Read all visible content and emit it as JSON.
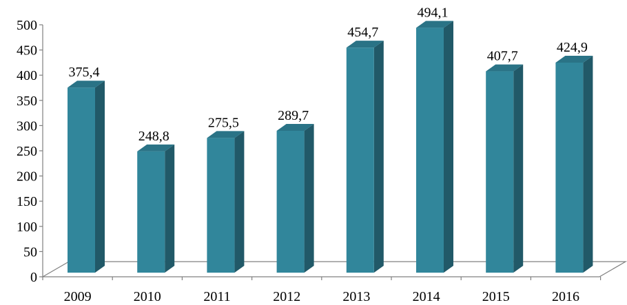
{
  "chart_data": {
    "type": "bar",
    "categories": [
      "2009",
      "2010",
      "2011",
      "2012",
      "2013",
      "2014",
      "2015",
      "2016"
    ],
    "values": [
      375.4,
      248.8,
      275.5,
      289.7,
      454.7,
      494.1,
      407.7,
      424.9
    ],
    "value_labels": [
      "375,4",
      "248,8",
      "275,5",
      "289,7",
      "454,7",
      "494,1",
      "407,7",
      "424,9"
    ],
    "title": "",
    "xlabel": "",
    "ylabel": "",
    "ylim": [
      0,
      500
    ],
    "yticks": [
      "0",
      "50",
      "100",
      "150",
      "200",
      "250",
      "300",
      "350",
      "400",
      "450",
      "500"
    ],
    "grid": false,
    "legend": "none",
    "style": "3d-column",
    "colors": {
      "bar_front": "#31869b",
      "bar_side": "#215968",
      "bar_top": "#2a7386",
      "axis": "#808080"
    }
  }
}
